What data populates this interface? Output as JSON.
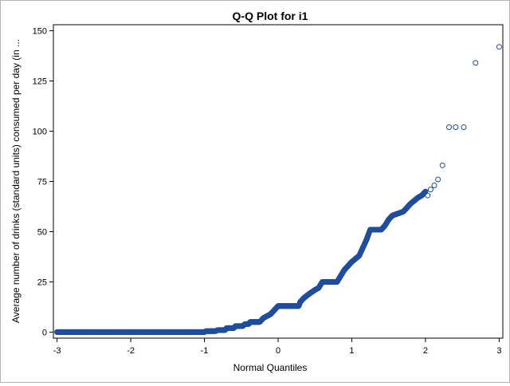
{
  "chart_data": {
    "type": "scatter",
    "title": "Q-Q Plot for i1",
    "xlabel": "Normal Quantiles",
    "ylabel": "Average number of drinks (standard units) consumed per day (in ...",
    "xlim": [
      -3.05,
      3.05
    ],
    "ylim": [
      -3,
      153
    ],
    "xticks": [
      -3,
      -2,
      -1,
      0,
      1,
      2,
      3
    ],
    "yticks": [
      0,
      25,
      50,
      75,
      100,
      125,
      150
    ],
    "grid": false,
    "marker": "open-circle",
    "colors": {
      "marker": "#1f4e9c",
      "axis": "#000000",
      "frame": "#b3b3b3"
    },
    "curve": [
      [
        -3.0,
        0
      ],
      [
        -2.7,
        0
      ],
      [
        -2.52,
        0
      ],
      [
        -1.0,
        0
      ],
      [
        -0.98,
        0.5
      ],
      [
        -0.85,
        0.5
      ],
      [
        -0.82,
        1
      ],
      [
        -0.72,
        1
      ],
      [
        -0.7,
        2
      ],
      [
        -0.6,
        2
      ],
      [
        -0.58,
        3
      ],
      [
        -0.48,
        3
      ],
      [
        -0.45,
        4
      ],
      [
        -0.4,
        4
      ],
      [
        -0.38,
        5
      ],
      [
        -0.25,
        5
      ],
      [
        -0.2,
        7
      ],
      [
        -0.1,
        9
      ],
      [
        -0.05,
        11
      ],
      [
        0.0,
        13
      ],
      [
        0.28,
        13
      ],
      [
        0.3,
        15
      ],
      [
        0.35,
        17
      ],
      [
        0.42,
        19
      ],
      [
        0.5,
        21
      ],
      [
        0.55,
        22
      ],
      [
        0.6,
        25
      ],
      [
        0.8,
        25
      ],
      [
        0.85,
        28
      ],
      [
        0.9,
        31
      ],
      [
        1.0,
        35
      ],
      [
        1.1,
        38
      ],
      [
        1.15,
        42
      ],
      [
        1.2,
        46
      ],
      [
        1.25,
        51
      ],
      [
        1.4,
        51
      ],
      [
        1.45,
        53
      ],
      [
        1.5,
        56
      ],
      [
        1.55,
        58
      ],
      [
        1.7,
        60
      ],
      [
        1.8,
        64
      ],
      [
        1.9,
        67
      ],
      [
        1.95,
        68
      ],
      [
        2.0,
        70
      ]
    ],
    "sparse_points": [
      [
        -3.0,
        0
      ],
      [
        -2.68,
        0
      ],
      [
        -2.52,
        0
      ],
      [
        -2.41,
        0
      ],
      [
        -2.32,
        0
      ],
      [
        -2.25,
        0
      ],
      [
        -2.18,
        0
      ],
      [
        -2.12,
        0
      ],
      [
        -2.06,
        0
      ],
      [
        -2.0,
        0
      ],
      [
        -1.95,
        0
      ],
      [
        -1.9,
        0
      ],
      [
        -1.85,
        0
      ],
      [
        -1.8,
        0
      ],
      [
        -1.75,
        0
      ],
      [
        -1.7,
        0
      ],
      [
        -1.65,
        0
      ],
      [
        -1.6,
        0
      ],
      [
        -1.55,
        0
      ],
      [
        -1.5,
        0
      ],
      [
        -1.45,
        0
      ],
      [
        -1.4,
        0
      ],
      [
        -1.35,
        0
      ],
      [
        -1.3,
        0
      ],
      [
        2.03,
        68
      ],
      [
        2.07,
        71
      ],
      [
        2.12,
        73
      ],
      [
        2.17,
        76
      ],
      [
        2.23,
        83
      ],
      [
        2.32,
        102
      ],
      [
        2.41,
        102
      ],
      [
        2.52,
        102
      ],
      [
        2.68,
        134
      ],
      [
        3.0,
        142
      ]
    ]
  }
}
